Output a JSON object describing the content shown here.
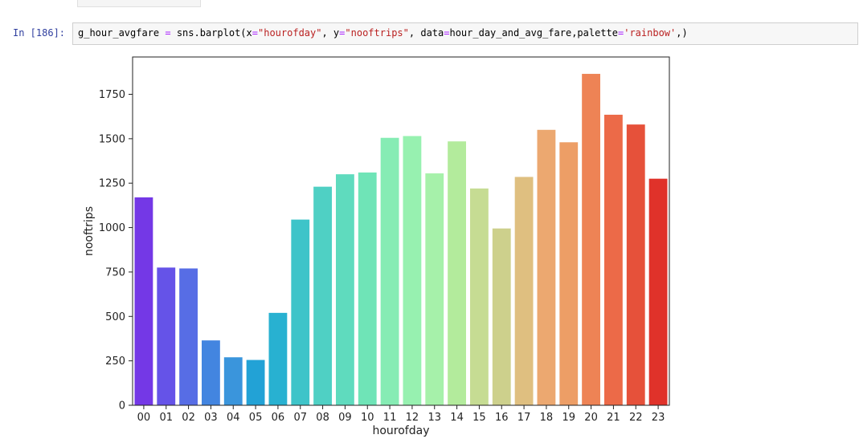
{
  "cell": {
    "prompt": "In [186]:",
    "code": {
      "p1": "g_hour_avgfare ",
      "eq": "=",
      "p2": " sns.barplot(x",
      "eq2": "=",
      "s1": "\"hourofday\"",
      "p3": ", y",
      "eq3": "=",
      "s2": "\"nooftrips\"",
      "p4": ", data",
      "eq4": "=",
      "p5": "hour_day_and_avg_fare,palette",
      "eq5": "=",
      "s3": "'rainbow'",
      "p6": ",)"
    }
  },
  "chart_data": {
    "type": "bar",
    "categories": [
      "00",
      "01",
      "02",
      "03",
      "04",
      "05",
      "06",
      "07",
      "08",
      "09",
      "10",
      "11",
      "12",
      "13",
      "14",
      "15",
      "16",
      "17",
      "18",
      "19",
      "20",
      "21",
      "22",
      "23"
    ],
    "values": [
      1170,
      775,
      770,
      365,
      270,
      255,
      520,
      1045,
      1230,
      1300,
      1310,
      1505,
      1515,
      1305,
      1485,
      1220,
      995,
      1285,
      1550,
      1480,
      1865,
      1635,
      1580,
      1275
    ],
    "colors": [
      "#7438e6",
      "#6553e8",
      "#576de5",
      "#4385e0",
      "#3a95dc",
      "#22a2d6",
      "#28b1d1",
      "#3ec4c9",
      "#4fd0c4",
      "#5fdbbe",
      "#6fe4b7",
      "#86ecb4",
      "#97f1b0",
      "#a6f1aa",
      "#b3eb9c",
      "#c6dc93",
      "#cdd08c",
      "#dfbf80",
      "#eca870",
      "#ed9e66",
      "#ee8355",
      "#ec6a48",
      "#e6513a",
      "#e0322a"
    ],
    "xlabel": "hourofday",
    "ylabel": "nooftrips",
    "yticks": [
      0,
      250,
      500,
      750,
      1000,
      1250,
      1500,
      1750
    ],
    "ylim": [
      0,
      1960
    ]
  }
}
